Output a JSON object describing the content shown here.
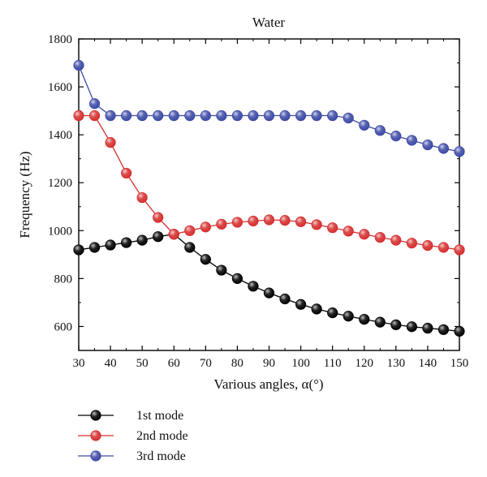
{
  "chart_data": {
    "type": "line",
    "title": "Water",
    "xlabel": "Various angles, α(°)",
    "ylabel": "Frequency (Hz)",
    "xlim": [
      30,
      150
    ],
    "ylim": [
      500,
      1800
    ],
    "xticks": [
      30,
      40,
      50,
      60,
      70,
      80,
      90,
      100,
      110,
      120,
      130,
      140,
      150
    ],
    "yticks": [
      600,
      800,
      1000,
      1200,
      1400,
      1600,
      1800
    ],
    "grid": false,
    "legend_position": "bottom-left",
    "x": [
      30,
      35,
      40,
      45,
      50,
      55,
      60,
      65,
      70,
      75,
      80,
      85,
      90,
      95,
      100,
      105,
      110,
      115,
      120,
      125,
      130,
      135,
      140,
      145,
      150
    ],
    "series": [
      {
        "name": "1st mode",
        "color": "#000000",
        "values": [
          920,
          930,
          940,
          950,
          960,
          975,
          985,
          930,
          880,
          835,
          800,
          768,
          740,
          715,
          692,
          673,
          657,
          643,
          630,
          618,
          607,
          599,
          593,
          587,
          580
        ]
      },
      {
        "name": "2nd mode",
        "color": "#d62f2f",
        "values": [
          1480,
          1480,
          1368,
          1240,
          1138,
          1055,
          985,
          1000,
          1015,
          1027,
          1035,
          1040,
          1045,
          1043,
          1037,
          1025,
          1012,
          998,
          985,
          972,
          960,
          948,
          938,
          930,
          920
        ]
      },
      {
        "name": "3rd mode",
        "color": "#3c4aa6",
        "values": [
          1690,
          1530,
          1480,
          1480,
          1480,
          1480,
          1480,
          1480,
          1480,
          1480,
          1480,
          1480,
          1480,
          1480,
          1480,
          1480,
          1480,
          1470,
          1440,
          1418,
          1395,
          1377,
          1358,
          1343,
          1330
        ]
      }
    ]
  }
}
